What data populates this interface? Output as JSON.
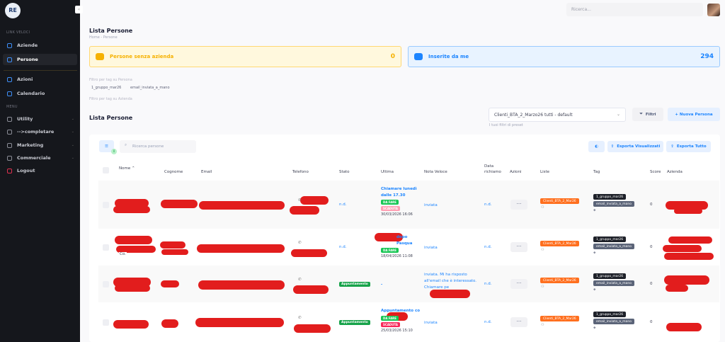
{
  "sidebar": {
    "logo_text": "RE",
    "section_quick": "LINK VELOCI",
    "section_menu": "MENU",
    "items": [
      {
        "label": "Aziende"
      },
      {
        "label": "Persone"
      },
      {
        "label": "Azioni"
      },
      {
        "label": "Calendario"
      },
      {
        "label": "Utility"
      },
      {
        "label": "-->completare"
      },
      {
        "label": "Marketing"
      },
      {
        "label": "Commerciale"
      },
      {
        "label": "Logout"
      }
    ]
  },
  "topbar": {
    "search_placeholder": "Ricerca..."
  },
  "page": {
    "title": "Lista Persone",
    "breadcrumb": [
      "Home",
      "Persone"
    ],
    "breadcrumb_sep": "-"
  },
  "stats": [
    {
      "label": "Persone senza azienda",
      "value": "0",
      "color": "#f6b100"
    },
    {
      "label": "Inserite da me",
      "value": "294",
      "color": "#1b84ff"
    }
  ],
  "filters": {
    "person_label": "Filtro per tag su Persona",
    "person_tags": [
      "1_gruppo_mar26",
      "email_inviata_a_mano"
    ],
    "company_label": "Filtro per tag su Azienda"
  },
  "list": {
    "title": "Lista Persone",
    "preset_value": "Clienti_BTA_2_Marzo26 tutti - default",
    "preset_hint": "I tuoi filtri di preset",
    "filters_button": "Filtri",
    "new_button": "+ Nuova Persona",
    "search_placeholder": "Ricerca persone",
    "view_badge": "0",
    "export_visible": "Esporta Visualizzati",
    "export_all": "Esporta Tutto"
  },
  "columns": [
    "Nome",
    "Cognome",
    "Email",
    "Telefono",
    "Stato",
    "Ultima",
    "Nota Veloce",
    "Data richiamo",
    "Azioni",
    "Liste",
    "Tag",
    "Score",
    "Azienda"
  ],
  "rows": [
    {
      "name_visible": "",
      "stato": "n.d.",
      "stato_badge": false,
      "ultima": "Chiamare lunedì dalle 17.30",
      "badges": [
        "DA FARE",
        "SCADUTA"
      ],
      "date": "30/03/2026 16:06",
      "nota": "inviata",
      "richiamo": "n.d.",
      "lista": "Clienti_BTA_2_Mar26",
      "tags": [
        "1_gruppo_mar26",
        "email_inviata_a_mano"
      ],
      "score": "0"
    },
    {
      "name_visible": "Co.",
      "stato": "n.d.",
      "stato_badge": false,
      "ultima": "dopo Pasqua",
      "badges": [
        "DA FARE"
      ],
      "date": "18/04/2026 11:08",
      "nota": "inviata",
      "richiamo": "n.d.",
      "lista": "Clienti_BTA_2_Mar26",
      "tags": [
        "1_gruppo_mar26",
        "email_inviata_a_mano"
      ],
      "score": "0"
    },
    {
      "name_visible": "",
      "stato": "Appuntamento",
      "stato_badge": true,
      "ultima": "-",
      "badges": [],
      "date": "",
      "nota": "inviata. Mi ha risposto all'email che è interessato. Chiamare pe",
      "richiamo": "n.d.",
      "lista": "Clienti_BTA_2_Mar26",
      "tags": [
        "1_gruppo_mar26",
        "email_inviata_a_mano"
      ],
      "score": "0"
    },
    {
      "name_visible": "",
      "stato": "Appuntamento",
      "stato_badge": true,
      "ultima": "Appuntamento co",
      "badges": [
        "DA FARE",
        "SCADUTA"
      ],
      "date": "25/03/2026 15:10",
      "nota": "inviata",
      "richiamo": "n.d.",
      "lista": "Clienti_BTA_2_Mar26",
      "tags": [
        "1_gruppo_mar26",
        "email_inviata_a_mano"
      ],
      "score": "0"
    }
  ],
  "colors": {
    "sidebar": "#15171c",
    "accent": "#1b84ff",
    "warning": "#f6b100",
    "success": "#17c653",
    "danger": "#f8285a",
    "list_badge": "#ff6f1e",
    "redaction": "#e21d1d"
  }
}
